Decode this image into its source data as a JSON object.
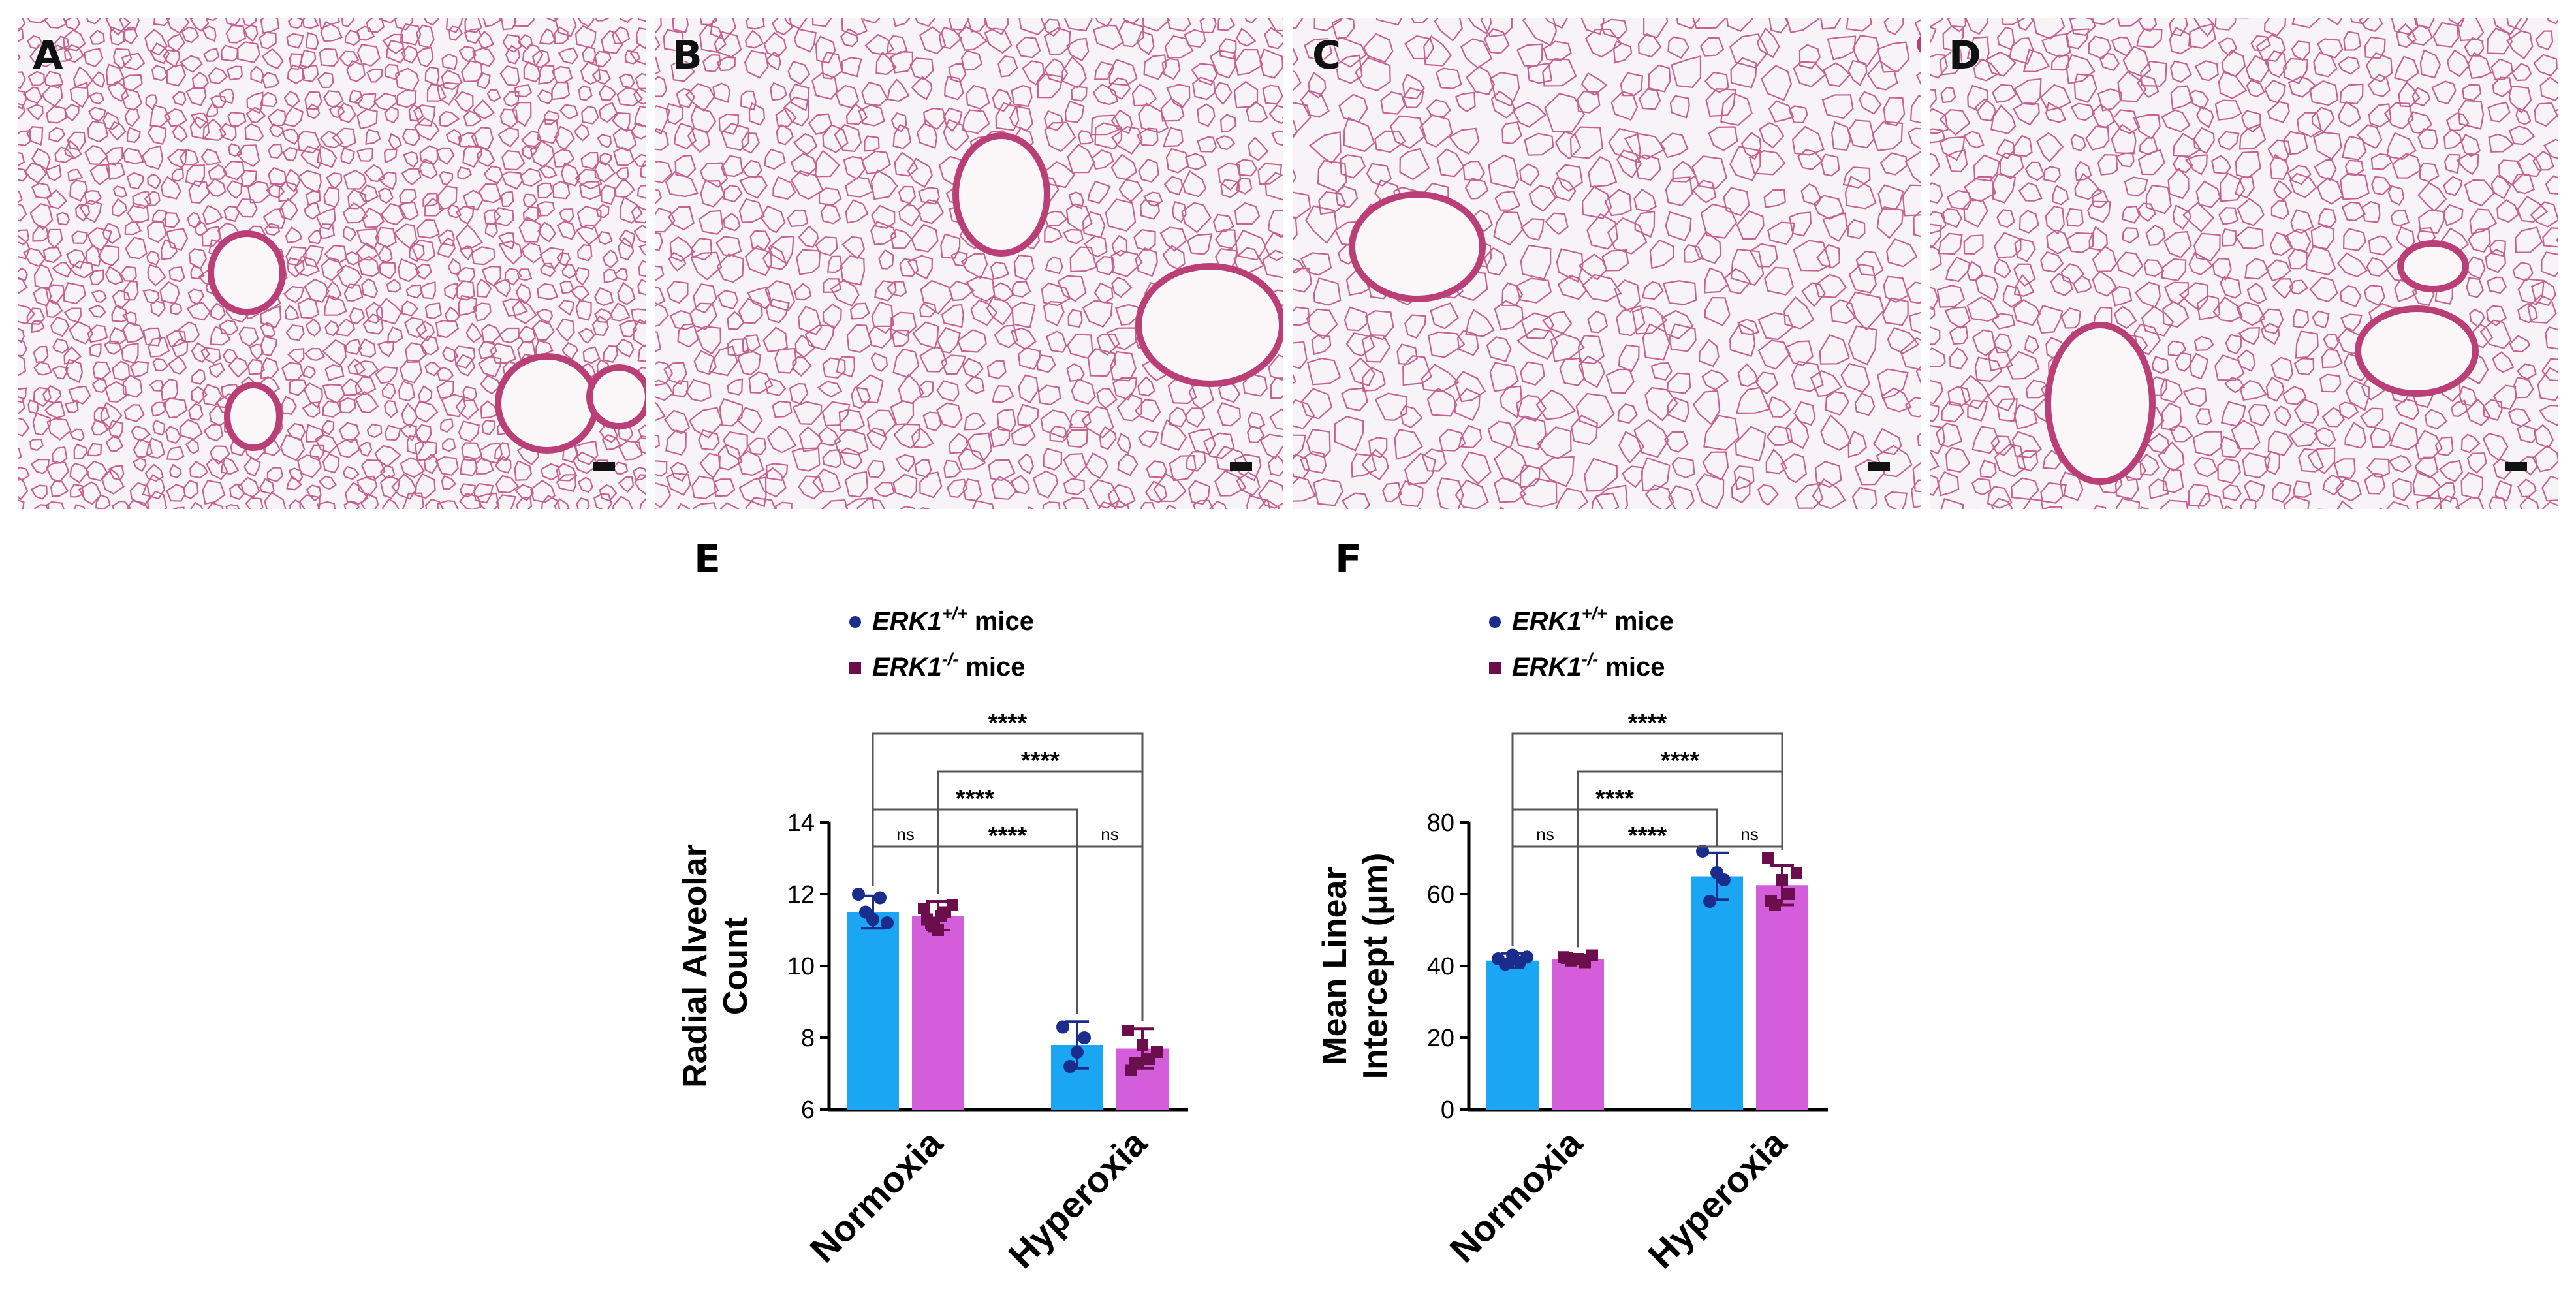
{
  "images": [
    {
      "label": "A",
      "id": "A"
    },
    {
      "label": "B",
      "id": "B"
    },
    {
      "label": "C",
      "id": "C"
    },
    {
      "label": "D",
      "id": "D"
    }
  ],
  "colors": {
    "wt_bar": "#1aa6f2",
    "ko_bar": "#d45ddb",
    "wt_dot": "#1b2d8c",
    "ko_dot": "#6b0f4c",
    "tissue": "#b93f76",
    "background": "#f7f3f6"
  },
  "chart_data": [
    {
      "panel": "E",
      "type": "bar",
      "ylabel_lines": [
        "Radial Alveolar",
        "Count"
      ],
      "ylim": [
        6,
        14
      ],
      "yticks": [
        6,
        8,
        10,
        12,
        14
      ],
      "categories": [
        "Normoxia",
        "Hyperoxia"
      ],
      "legend": [
        "ERK1+/+ mice",
        "ERK1-/- mice"
      ],
      "series": [
        {
          "name": "ERK1+/+ mice",
          "values": [
            11.5,
            7.8
          ],
          "sd": [
            0.45,
            0.65
          ],
          "points": [
            [
              12.0,
              11.5,
              11.3,
              11.9,
              11.2
            ],
            [
              8.3,
              7.2,
              7.6,
              8.0
            ]
          ]
        },
        {
          "name": "ERK1-/- mice",
          "values": [
            11.4,
            7.7
          ],
          "sd": [
            0.4,
            0.55
          ],
          "points": [
            [
              11.6,
              11.2,
              11.0,
              11.5,
              11.7,
              11.3,
              11.1,
              11.4
            ],
            [
              8.2,
              7.3,
              7.8,
              7.4,
              7.6,
              7.1
            ]
          ]
        }
      ],
      "comparisons": [
        {
          "from": "wt0",
          "to": "ko0",
          "label": "ns"
        },
        {
          "from": "ko0",
          "to": "wt1",
          "label": "****"
        },
        {
          "from": "wt1",
          "to": "ko1",
          "label": "ns"
        },
        {
          "from": "wt0",
          "to": "wt1",
          "label": "****"
        },
        {
          "from": "ko0",
          "to": "ko1",
          "label": "****"
        },
        {
          "from": "wt0",
          "to": "ko1",
          "label": "****"
        }
      ]
    },
    {
      "panel": "F",
      "type": "bar",
      "ylabel_lines": [
        "Mean Linear",
        "Intercept (μm)"
      ],
      "ylim": [
        0,
        80
      ],
      "yticks": [
        0,
        20,
        40,
        60,
        80
      ],
      "categories": [
        "Normoxia",
        "Hyperoxia"
      ],
      "legend": [
        "ERK1+/+ mice",
        "ERK1-/- mice"
      ],
      "series": [
        {
          "name": "ERK1+/+ mice",
          "values": [
            41.5,
            65.0
          ],
          "sd": [
            2.0,
            6.5
          ],
          "points": [
            [
              42.0,
              40.5,
              43.0,
              41.0,
              42.5
            ],
            [
              72.0,
              58.0,
              66.0,
              64.0
            ]
          ]
        },
        {
          "name": "ERK1-/- mice",
          "values": [
            42.0,
            62.5
          ],
          "sd": [
            1.0,
            5.5
          ],
          "points": [
            [
              42.5,
              41.5,
              42.0,
              41.0,
              43.0,
              42.2
            ],
            [
              70.0,
              57.0,
              64.0,
              60.0,
              66.0,
              58.0
            ]
          ]
        }
      ],
      "comparisons": [
        {
          "from": "wt0",
          "to": "ko0",
          "label": "ns"
        },
        {
          "from": "ko0",
          "to": "wt1",
          "label": "****"
        },
        {
          "from": "wt1",
          "to": "ko1",
          "label": "ns"
        },
        {
          "from": "wt0",
          "to": "wt1",
          "label": "****"
        },
        {
          "from": "ko0",
          "to": "ko1",
          "label": "****"
        },
        {
          "from": "wt0",
          "to": "ko1",
          "label": "****"
        }
      ]
    }
  ]
}
